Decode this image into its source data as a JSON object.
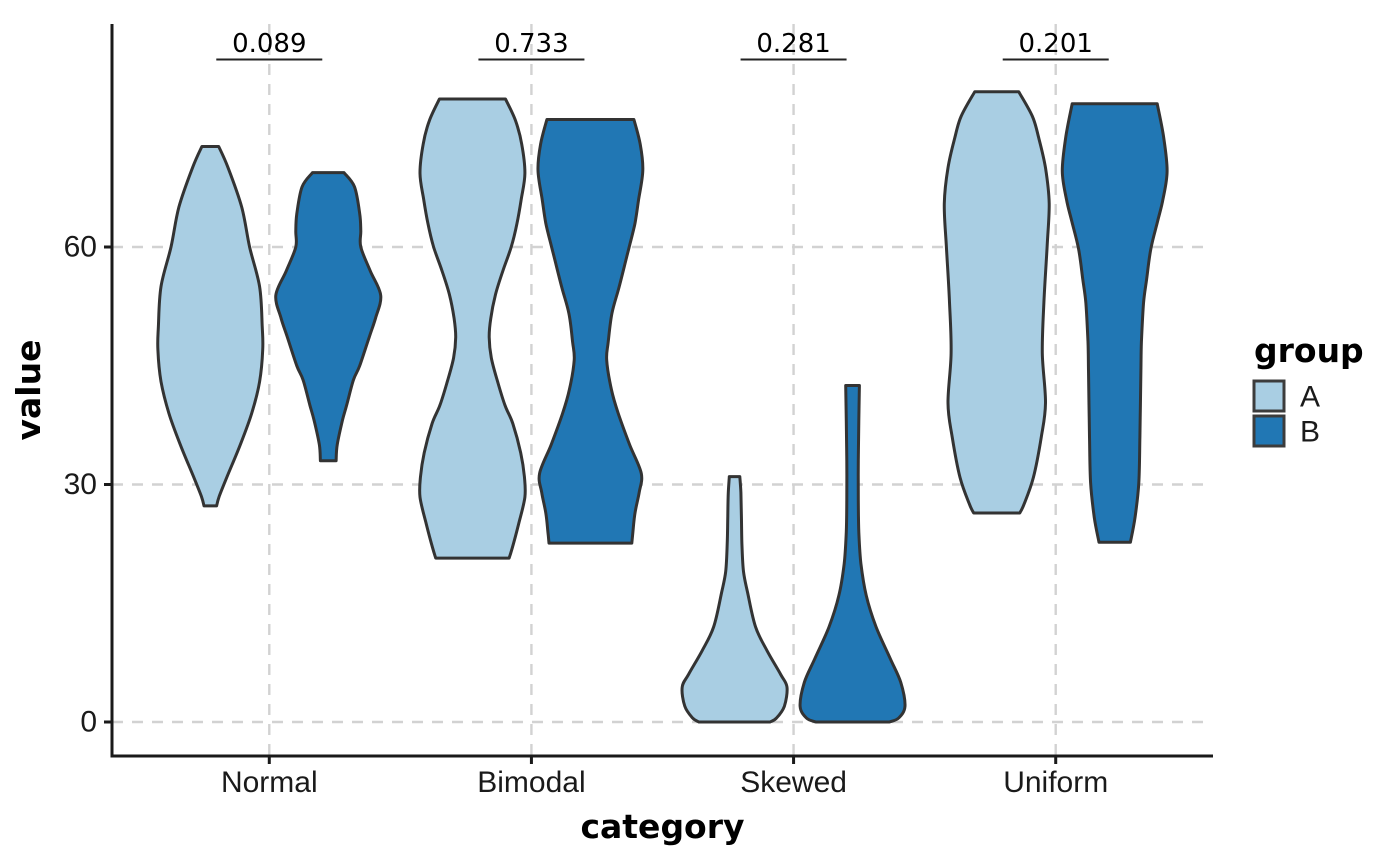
{
  "chart_data": {
    "type": "violin",
    "title": "",
    "xlabel": "category",
    "ylabel": "value",
    "categories": [
      "Normal",
      "Bimodal",
      "Skewed",
      "Uniform"
    ],
    "groups": [
      "A",
      "B"
    ],
    "group_fills": {
      "A": "#a9cee3",
      "B": "#2177b4"
    },
    "legend": {
      "title": "group",
      "position": "right",
      "entries": [
        "A",
        "B"
      ]
    },
    "y_ticks": [
      0,
      30,
      60
    ],
    "ylim": [
      -4.3,
      88.4
    ],
    "grid": "dashed",
    "p_values": [
      {
        "category": "Normal",
        "label": "0.089"
      },
      {
        "category": "Bimodal",
        "label": "0.733"
      },
      {
        "category": "Skewed",
        "label": "0.281"
      },
      {
        "category": "Uniform",
        "label": "0.201"
      }
    ],
    "violins": [
      {
        "category": "Normal",
        "group": "A",
        "range": [
          27.3,
          72.7
        ],
        "peaks": [
          47
        ],
        "profile": [
          [
            72.7,
            0.16
          ],
          [
            70,
            0.34
          ],
          [
            65,
            0.6
          ],
          [
            60,
            0.75
          ],
          [
            55,
            0.94
          ],
          [
            50,
            0.99
          ],
          [
            47,
            1.0
          ],
          [
            43,
            0.94
          ],
          [
            39,
            0.79
          ],
          [
            35,
            0.57
          ],
          [
            31,
            0.32
          ],
          [
            28.5,
            0.17
          ],
          [
            27.3,
            0.12
          ]
        ]
      },
      {
        "category": "Normal",
        "group": "B",
        "range": [
          33,
          69.4
        ],
        "peaks": [
          53.9
        ],
        "profile": [
          [
            69.4,
            0.3
          ],
          [
            67.6,
            0.5
          ],
          [
            64.2,
            0.6
          ],
          [
            62,
            0.62
          ],
          [
            60,
            0.62
          ],
          [
            57,
            0.8
          ],
          [
            53.9,
            1.0
          ],
          [
            51,
            0.9
          ],
          [
            48.6,
            0.78
          ],
          [
            45,
            0.6
          ],
          [
            43.2,
            0.48
          ],
          [
            40,
            0.35
          ],
          [
            38.1,
            0.27
          ],
          [
            35,
            0.17
          ],
          [
            33,
            0.15
          ]
        ]
      },
      {
        "category": "Bimodal",
        "group": "A",
        "range": [
          20.7,
          78.7
        ],
        "peaks": [
          69.3,
          28.4
        ],
        "profile": [
          [
            78.7,
            0.63
          ],
          [
            76,
            0.82
          ],
          [
            73,
            0.94
          ],
          [
            69.3,
            1.0
          ],
          [
            66,
            0.93
          ],
          [
            63,
            0.85
          ],
          [
            60,
            0.74
          ],
          [
            57,
            0.58
          ],
          [
            54,
            0.44
          ],
          [
            51,
            0.35
          ],
          [
            48.6,
            0.32
          ],
          [
            46,
            0.36
          ],
          [
            43,
            0.48
          ],
          [
            40,
            0.62
          ],
          [
            37.7,
            0.77
          ],
          [
            34,
            0.92
          ],
          [
            31,
            0.99
          ],
          [
            28.4,
            1.0
          ],
          [
            25,
            0.88
          ],
          [
            22,
            0.76
          ],
          [
            20.7,
            0.7
          ]
        ]
      },
      {
        "category": "Bimodal",
        "group": "B",
        "range": [
          22.6,
          76.1
        ],
        "peaks": [
          69.7,
          31.4
        ],
        "profile": [
          [
            76.1,
            0.83
          ],
          [
            73,
            0.95
          ],
          [
            69.7,
            1.0
          ],
          [
            66,
            0.92
          ],
          [
            63,
            0.85
          ],
          [
            60,
            0.74
          ],
          [
            58.7,
            0.69
          ],
          [
            55,
            0.55
          ],
          [
            51.6,
            0.41
          ],
          [
            48,
            0.34
          ],
          [
            45.7,
            0.31
          ],
          [
            42,
            0.4
          ],
          [
            39,
            0.53
          ],
          [
            35,
            0.75
          ],
          [
            31.4,
            0.97
          ],
          [
            29,
            0.93
          ],
          [
            26.4,
            0.85
          ],
          [
            24,
            0.81
          ],
          [
            22.6,
            0.79
          ]
        ]
      },
      {
        "category": "Skewed",
        "group": "A",
        "range": [
          0,
          31
        ],
        "peaks": [
          4.4
        ],
        "profile": [
          [
            31,
            0.1
          ],
          [
            29,
            0.12
          ],
          [
            26,
            0.13
          ],
          [
            22.5,
            0.14
          ],
          [
            19,
            0.17
          ],
          [
            16.3,
            0.25
          ],
          [
            12,
            0.4
          ],
          [
            9,
            0.62
          ],
          [
            6,
            0.88
          ],
          [
            4.4,
            1.0
          ],
          [
            2,
            0.95
          ],
          [
            0.5,
            0.8
          ],
          [
            0,
            0.68
          ]
        ]
      },
      {
        "category": "Skewed",
        "group": "B",
        "range": [
          0,
          42.5
        ],
        "peaks": [
          2
        ],
        "profile": [
          [
            42.5,
            0.13
          ],
          [
            38,
            0.12
          ],
          [
            33,
            0.11
          ],
          [
            28,
            0.11
          ],
          [
            24,
            0.12
          ],
          [
            20,
            0.16
          ],
          [
            16,
            0.26
          ],
          [
            12,
            0.45
          ],
          [
            8,
            0.72
          ],
          [
            5,
            0.92
          ],
          [
            2,
            1.0
          ],
          [
            0.5,
            0.88
          ],
          [
            0,
            0.7
          ]
        ]
      },
      {
        "category": "Uniform",
        "group": "A",
        "range": [
          26.4,
          79.6
        ],
        "peaks": [
          65.5
        ],
        "profile": [
          [
            79.6,
            0.42
          ],
          [
            76.5,
            0.68
          ],
          [
            73.8,
            0.8
          ],
          [
            70,
            0.93
          ],
          [
            65.5,
            1.0
          ],
          [
            60,
            0.96
          ],
          [
            53,
            0.9
          ],
          [
            46.6,
            0.87
          ],
          [
            40.3,
            0.93
          ],
          [
            36,
            0.85
          ],
          [
            30.9,
            0.7
          ],
          [
            27.5,
            0.52
          ],
          [
            26.4,
            0.44
          ]
        ]
      },
      {
        "category": "Uniform",
        "group": "B",
        "range": [
          22.7,
          78.1
        ],
        "peaks": [
          69.6
        ],
        "profile": [
          [
            78.1,
            0.81
          ],
          [
            74,
            0.93
          ],
          [
            69.6,
            1.0
          ],
          [
            66,
            0.92
          ],
          [
            63.3,
            0.82
          ],
          [
            59.8,
            0.69
          ],
          [
            56,
            0.61
          ],
          [
            52.9,
            0.55
          ],
          [
            48,
            0.51
          ],
          [
            44.4,
            0.5
          ],
          [
            40,
            0.49
          ],
          [
            36,
            0.48
          ],
          [
            30.2,
            0.46
          ],
          [
            25.9,
            0.39
          ],
          [
            22.7,
            0.3
          ]
        ]
      }
    ]
  },
  "style": {
    "background": "#ffffff",
    "violin_stroke": "#333333",
    "axis_color": "#1a1a1a",
    "grid_color": "#d2d2d2",
    "text_color": "#000000",
    "fill_A": "#a9cee3",
    "fill_B": "#2177b4"
  }
}
